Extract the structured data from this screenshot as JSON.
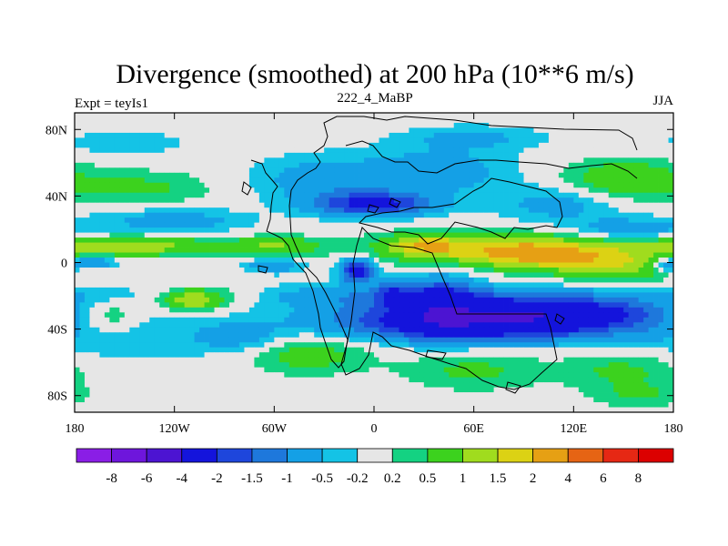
{
  "chart_data": {
    "type": "heatmap",
    "title": "Divergence (smoothed) at 200 hPa (10**6 m/s)",
    "left_label": "Expt = teyIs1",
    "center_label": "222_4_MaBP",
    "right_label": "JJA",
    "x_ticks": [
      {
        "value": -180,
        "label": "180"
      },
      {
        "value": -120,
        "label": "120W"
      },
      {
        "value": -60,
        "label": "60W"
      },
      {
        "value": 0,
        "label": "0"
      },
      {
        "value": 60,
        "label": "60E"
      },
      {
        "value": 120,
        "label": "120E"
      },
      {
        "value": 180,
        "label": "180"
      }
    ],
    "y_ticks": [
      {
        "value": 80,
        "label": "80N"
      },
      {
        "value": 40,
        "label": "40N"
      },
      {
        "value": 0,
        "label": "0"
      },
      {
        "value": -40,
        "label": "40S"
      },
      {
        "value": -80,
        "label": "80S"
      }
    ],
    "xlim": [
      -180,
      180
    ],
    "ylim": [
      -90,
      90
    ],
    "levels": [
      "-8",
      "-6",
      "-4",
      "-2",
      "-1.5",
      "-1",
      "-0.5",
      "-0.2",
      "0.2",
      "0.5",
      "1",
      "1.5",
      "2",
      "4",
      "6",
      "8"
    ],
    "level_values": [
      -8,
      -6,
      -4,
      -2,
      -1.5,
      -1,
      -0.5,
      -0.2,
      0.2,
      0.5,
      1,
      1.5,
      2,
      4,
      6,
      8
    ],
    "colors": [
      "#8a1ee6",
      "#6e16dc",
      "#4c14d2",
      "#1414dc",
      "#1e46dc",
      "#1e78dc",
      "#14a0e6",
      "#14c3e6",
      "#e6e6e6",
      "#14d282",
      "#3cd21e",
      "#a0dc1e",
      "#dcd214",
      "#e6a014",
      "#e66414",
      "#e62814",
      "#dc0000"
    ],
    "features": [
      {
        "lon": -10,
        "lat": -20,
        "sx": 200,
        "sy": 5,
        "amp": -0.8
      },
      {
        "lon": 60,
        "lat": 8,
        "sx": 40,
        "sy": 7,
        "amp": 1.4
      },
      {
        "lon": 100,
        "lat": 5,
        "sx": 25,
        "sy": 6,
        "amp": 1.6
      },
      {
        "lon": 145,
        "lat": 0,
        "sx": 25,
        "sy": 8,
        "amp": 1.4
      },
      {
        "lon": -150,
        "lat": 10,
        "sx": 35,
        "sy": 4,
        "amp": 1.5
      },
      {
        "lon": -60,
        "lat": 10,
        "sx": 20,
        "sy": 4,
        "amp": 1.0
      },
      {
        "lon": 30,
        "lat": 10,
        "sx": 15,
        "sy": 4,
        "amp": 1.2
      },
      {
        "lon": -170,
        "lat": 0,
        "sx": 10,
        "sy": 3,
        "amp": -1.2
      },
      {
        "lon": 175,
        "lat": -2,
        "sx": 6,
        "sy": 3,
        "amp": -1.0
      },
      {
        "lon": 70,
        "lat": -35,
        "sx": 60,
        "sy": 8,
        "amp": -3.5
      },
      {
        "lon": 40,
        "lat": -25,
        "sx": 15,
        "sy": 12,
        "amp": -1.8
      },
      {
        "lon": 110,
        "lat": -30,
        "sx": 40,
        "sy": 5,
        "amp": -1.3
      },
      {
        "lon": -10,
        "lat": -5,
        "sx": 7,
        "sy": 5,
        "amp": -2.5
      },
      {
        "lon": 10,
        "lat": -18,
        "sx": 6,
        "sy": 5,
        "amp": -1.2
      },
      {
        "lon": -60,
        "lat": -2,
        "sx": 12,
        "sy": 3,
        "amp": -1.0
      },
      {
        "lon": 0,
        "lat": 35,
        "sx": 25,
        "sy": 5,
        "amp": -2.2
      },
      {
        "lon": -30,
        "lat": 50,
        "sx": 30,
        "sy": 10,
        "amp": -0.8
      },
      {
        "lon": 40,
        "lat": 55,
        "sx": 30,
        "sy": 10,
        "amp": -0.8
      },
      {
        "lon": 110,
        "lat": 35,
        "sx": 25,
        "sy": 8,
        "amp": -0.7
      },
      {
        "lon": -140,
        "lat": 45,
        "sx": 30,
        "sy": 7,
        "amp": 0.6
      },
      {
        "lon": 150,
        "lat": 50,
        "sx": 25,
        "sy": 8,
        "amp": 1.0
      },
      {
        "lon": -120,
        "lat": 25,
        "sx": 30,
        "sy": 5,
        "amp": -0.8
      },
      {
        "lon": 155,
        "lat": 20,
        "sx": 25,
        "sy": 5,
        "amp": -0.8
      },
      {
        "lon": -100,
        "lat": -20,
        "sx": 30,
        "sy": 5,
        "amp": 1.0
      },
      {
        "lon": -110,
        "lat": -23,
        "sx": 12,
        "sy": 4,
        "amp": 1.3
      },
      {
        "lon": -160,
        "lat": -33,
        "sx": 15,
        "sy": 8,
        "amp": 0.9
      },
      {
        "lon": -150,
        "lat": -45,
        "sx": 35,
        "sy": 10,
        "amp": -0.5
      },
      {
        "lon": -80,
        "lat": -45,
        "sx": 20,
        "sy": 7,
        "amp": -0.7
      },
      {
        "lon": -40,
        "lat": -55,
        "sx": 25,
        "sy": 8,
        "amp": 0.8
      },
      {
        "lon": 60,
        "lat": -65,
        "sx": 30,
        "sy": 8,
        "amp": 0.6
      },
      {
        "lon": 150,
        "lat": -65,
        "sx": 25,
        "sy": 8,
        "amp": 0.6
      },
      {
        "lon": 60,
        "lat": 75,
        "sx": 30,
        "sy": 5,
        "amp": -0.6
      },
      {
        "lon": -150,
        "lat": 72,
        "sx": 25,
        "sy": 5,
        "amp": -0.5
      },
      {
        "lon": 160,
        "lat": -80,
        "sx": 20,
        "sy": 5,
        "amp": 0.5
      }
    ]
  }
}
